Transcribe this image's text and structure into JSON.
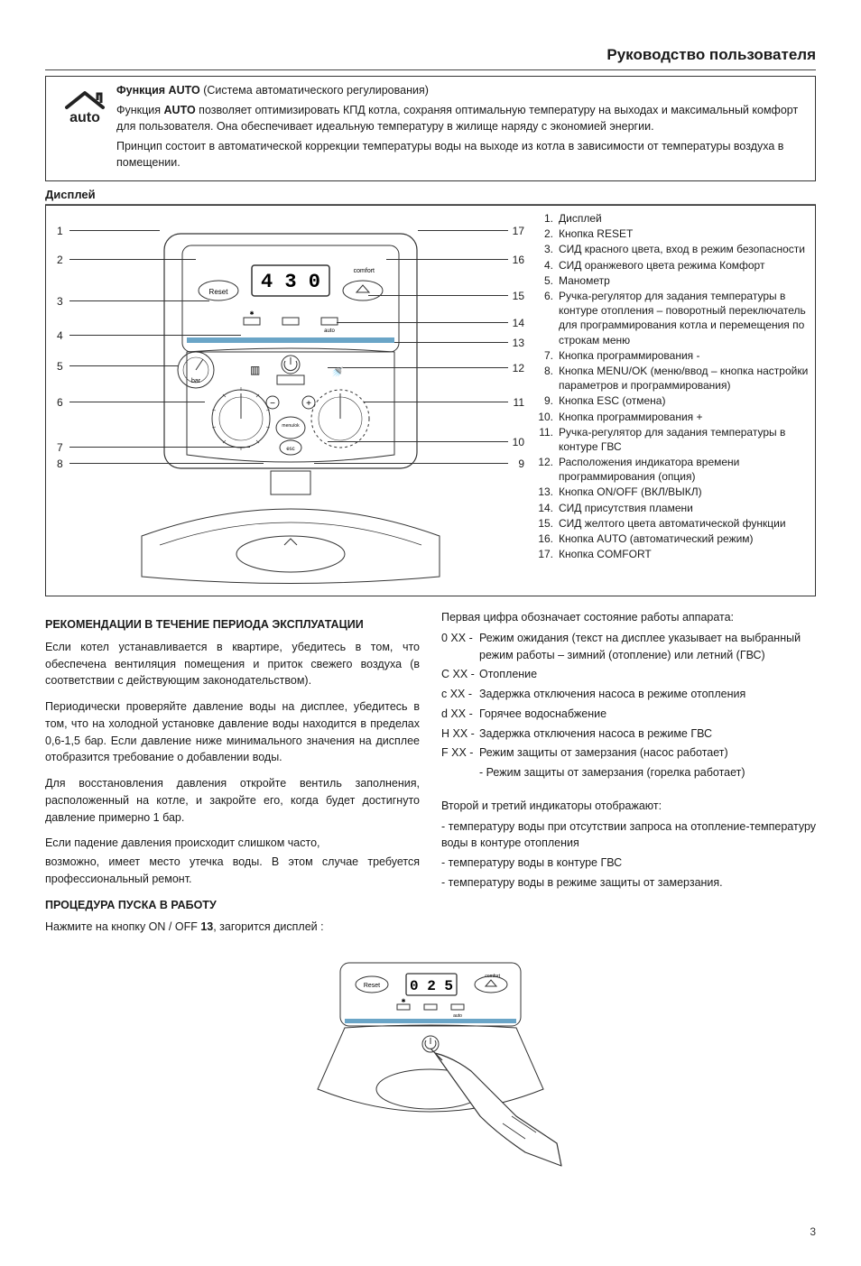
{
  "header": {
    "title": "Руководство пользователя"
  },
  "auto": {
    "heading_bold": "Функция AUTO",
    "heading_rest": " (Система автоматического регулирования)",
    "p1a": "Функция ",
    "p1b": "AUTO",
    "p1c": " позволяет оптимизировать КПД котла, сохраняя оптимальную температуру на выходах и максимальный комфорт для пользователя. Она обеспечивает идеальную температуру в жилище наряду с экономией энергии.",
    "p2": "Принцип состоит в автоматической коррекции температуры воды на выходе из котла в зависимости от температуры воздуха в помещении."
  },
  "display_label": "Дисплей",
  "diagram": {
    "left_nums": [
      "1",
      "2",
      "3",
      "4",
      "5",
      "6",
      "7",
      "8"
    ],
    "right_nums": [
      "17",
      "16",
      "15",
      "14",
      "13",
      "12",
      "11",
      "10",
      "9"
    ],
    "lcd_digits": "4 3 0",
    "lcd_label": "comfort",
    "reset_label": "Reset",
    "bar_label": "bar",
    "menu_label": "menu/ok",
    "esc_label": "esc",
    "auto_small": "auto"
  },
  "legend": [
    {
      "n": "1.",
      "t": "Дисплей"
    },
    {
      "n": "2.",
      "t": "Кнопка RESET"
    },
    {
      "n": "3.",
      "t": "СИД красного цвета, вход в режим безопасности"
    },
    {
      "n": "4.",
      "t": "СИД оранжевого цвета режима Комфорт"
    },
    {
      "n": "5.",
      "t": "Манометр"
    },
    {
      "n": "6.",
      "t": "Ручка-регулятор для задания температуры в контуре отопления – поворотный переключатель для программирования котла и перемещения по строкам меню"
    },
    {
      "n": "7.",
      "t": "Кнопка программирования -"
    },
    {
      "n": "8.",
      "t": "Кнопка MENU/OK (меню/ввод – кнопка настройки параметров и программирования)"
    },
    {
      "n": "9.",
      "t": "Кнопка ESC (отмена)"
    },
    {
      "n": "10.",
      "t": "Кнопка программирования +"
    },
    {
      "n": "11.",
      "t": "Ручка-регулятор для задания температуры в контуре ГВС"
    },
    {
      "n": "12.",
      "t": "Расположения индикатора времени программирования (опция)"
    },
    {
      "n": "13.",
      "t": "Кнопка ON/OFF (ВКЛ/ВЫКЛ)"
    },
    {
      "n": "14.",
      "t": "СИД присутствия пламени"
    },
    {
      "n": "15.",
      "t": "СИД желтого цвета автоматической функции"
    },
    {
      "n": "16.",
      "t": "Кнопка AUTO (автоматический режим)"
    },
    {
      "n": "17.",
      "t": "Кнопка COMFORT"
    }
  ],
  "rec": {
    "h": "РЕКОМЕНДАЦИИ В ТЕЧЕНИЕ ПЕРИОДА ЭКСПЛУАТАЦИИ",
    "p1": "Если котел устанавливается в квартире, убедитесь в том, что обеспечена вентиляция помещения и приток свежего воздуха (в соответствии с действующим законодательством).",
    "p2": "Периодически проверяйте давление воды на дисплее, убедитесь в том, что на холодной установке давление воды находится в пределах 0,6-1,5 бар. Если давление ниже минимального значения на дисплее отобразится требование о добавлении воды.",
    "p3": "Для восстановления давления откройте вентиль заполнения, расположенный на котле, и закройте его, когда будет достигнуто давление примерно 1 бар.",
    "p4": "Если падение давления происходит слишком часто,",
    "p5": "возможно, имеет место утечка воды. В этом случае требуется профессиональный ремонт."
  },
  "start": {
    "h": "ПРОЦЕДУРА ПУСКА В РАБОТУ",
    "p_a": "Нажмите на кнопку ON / OFF ",
    "p_b": "13",
    "p_c": ", загорится дисплей :",
    "lcd_digits": "0 2 5"
  },
  "state": {
    "intro": "Первая цифра обозначает состояние работы аппарата:",
    "codes": [
      {
        "k": "0 XX -",
        "v": "Режим ожидания (текст на дисплее указывает на выбранный режим работы – зимний (отопление) или летний (ГВС)"
      },
      {
        "k": "C XX -",
        "v": "Отопление"
      },
      {
        "k": "c XX -",
        "v": "Задержка отключения насоса в режиме отопления"
      },
      {
        "k": "d XX -",
        "v": "Горячее водоснабжение"
      },
      {
        "k": "H XX -",
        "v": "Задержка отключения насоса в режиме ГВС"
      },
      {
        "k": "F XX -",
        "v": "Режим защиты от замерзания (насос работает)"
      },
      {
        "k": "",
        "v": "- Режим защиты от замерзания (горелка работает)"
      }
    ],
    "second_intro": "Второй и третий индикаторы отображают:",
    "l1": "- температуру воды при отсутствии запроса на отопление-температуру воды в контуре отопления",
    "l2": "- температуру воды в контуре ГВС",
    "l3": "- температуру воды в режиме защиты от замерзания."
  },
  "page_number": "3"
}
